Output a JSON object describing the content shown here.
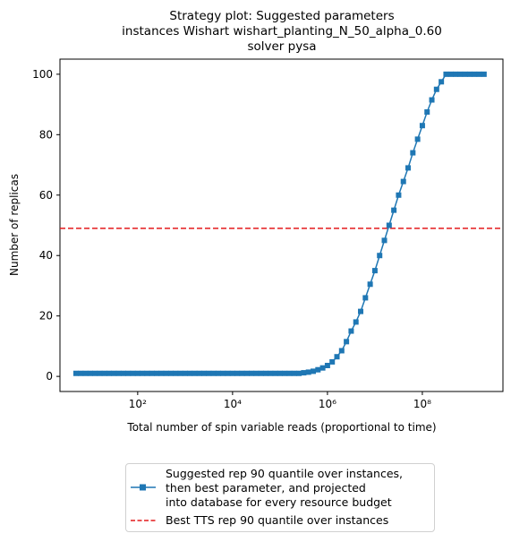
{
  "chart_data": {
    "type": "line",
    "title_lines": [
      "Strategy plot: Suggested parameters",
      "instances Wishart wishart_planting_N_50_alpha_0.60",
      "solver pysa"
    ],
    "xlabel": "Total number of spin variable reads (proportional to time)",
    "ylabel": "Number of replicas",
    "xscale": "log",
    "xlim": [
      2.3,
      5000000000
    ],
    "xticks": [
      {
        "value": 100,
        "label": "10²"
      },
      {
        "value": 10000,
        "label": "10⁴"
      },
      {
        "value": 1000000,
        "label": "10⁶"
      },
      {
        "value": 100000000,
        "label": "10⁸"
      }
    ],
    "ylim": [
      -5,
      105
    ],
    "yticks": [
      0,
      20,
      40,
      60,
      80,
      100
    ],
    "legend_position": "below",
    "series": [
      {
        "name": "Suggested rep 90 quantile over instances,\n then best parameter, and projected\n into database for every resource budget",
        "color": "#1f77b4",
        "marker": "square",
        "x": [
          5.012,
          6.31,
          7.943,
          10,
          12.59,
          15.85,
          19.95,
          25.12,
          31.62,
          39.81,
          50.12,
          63.1,
          79.43,
          100,
          125.9,
          158.5,
          199.5,
          251.2,
          316.2,
          398.1,
          501.2,
          631,
          794.3,
          1000,
          1259,
          1585,
          1995,
          2512,
          3162,
          3981,
          5012,
          6310,
          7943,
          10000,
          12590,
          15850,
          19950,
          25120,
          31620,
          39810,
          50120,
          63100,
          79430,
          100000,
          125900,
          158500,
          199500,
          251200,
          316200,
          398100,
          501200,
          631000,
          794300,
          1000000,
          1259000,
          1585000,
          1995000,
          2512000,
          3162000,
          3981000,
          5012000,
          6310000,
          7943000,
          10000000,
          12590000,
          15850000,
          19950000,
          25120000,
          31620000,
          39810000,
          50120000,
          63100000,
          79430000,
          100000000,
          125900000,
          158500000,
          199500000,
          251200000,
          316200000,
          398100000,
          501200000,
          631000000,
          794300000,
          1000000000,
          1259000000,
          1585000000,
          1995000000
        ],
        "values": [
          1,
          1,
          1,
          1,
          1,
          1,
          1,
          1,
          1,
          1,
          1,
          1,
          1,
          1,
          1,
          1,
          1,
          1,
          1,
          1,
          1,
          1,
          1,
          1,
          1,
          1,
          1,
          1,
          1,
          1,
          1,
          1,
          1,
          1,
          1,
          1,
          1,
          1,
          1,
          1,
          1,
          1,
          1,
          1,
          1,
          1,
          1,
          1,
          1.2,
          1.4,
          1.7,
          2.2,
          2.8,
          3.6,
          4.8,
          6.5,
          8.5,
          11.5,
          15,
          18,
          21.5,
          26,
          30.5,
          35,
          40,
          45,
          50,
          55,
          60,
          64.5,
          69,
          74,
          78.5,
          83,
          87.5,
          91.5,
          95,
          97.5,
          100,
          100,
          100,
          100,
          100,
          100,
          100,
          100,
          100
        ]
      }
    ],
    "hlines": [
      {
        "name": "Best TTS rep 90 quantile over instances",
        "value": 49,
        "color": "#e41a1c",
        "style": "dashed"
      }
    ]
  }
}
